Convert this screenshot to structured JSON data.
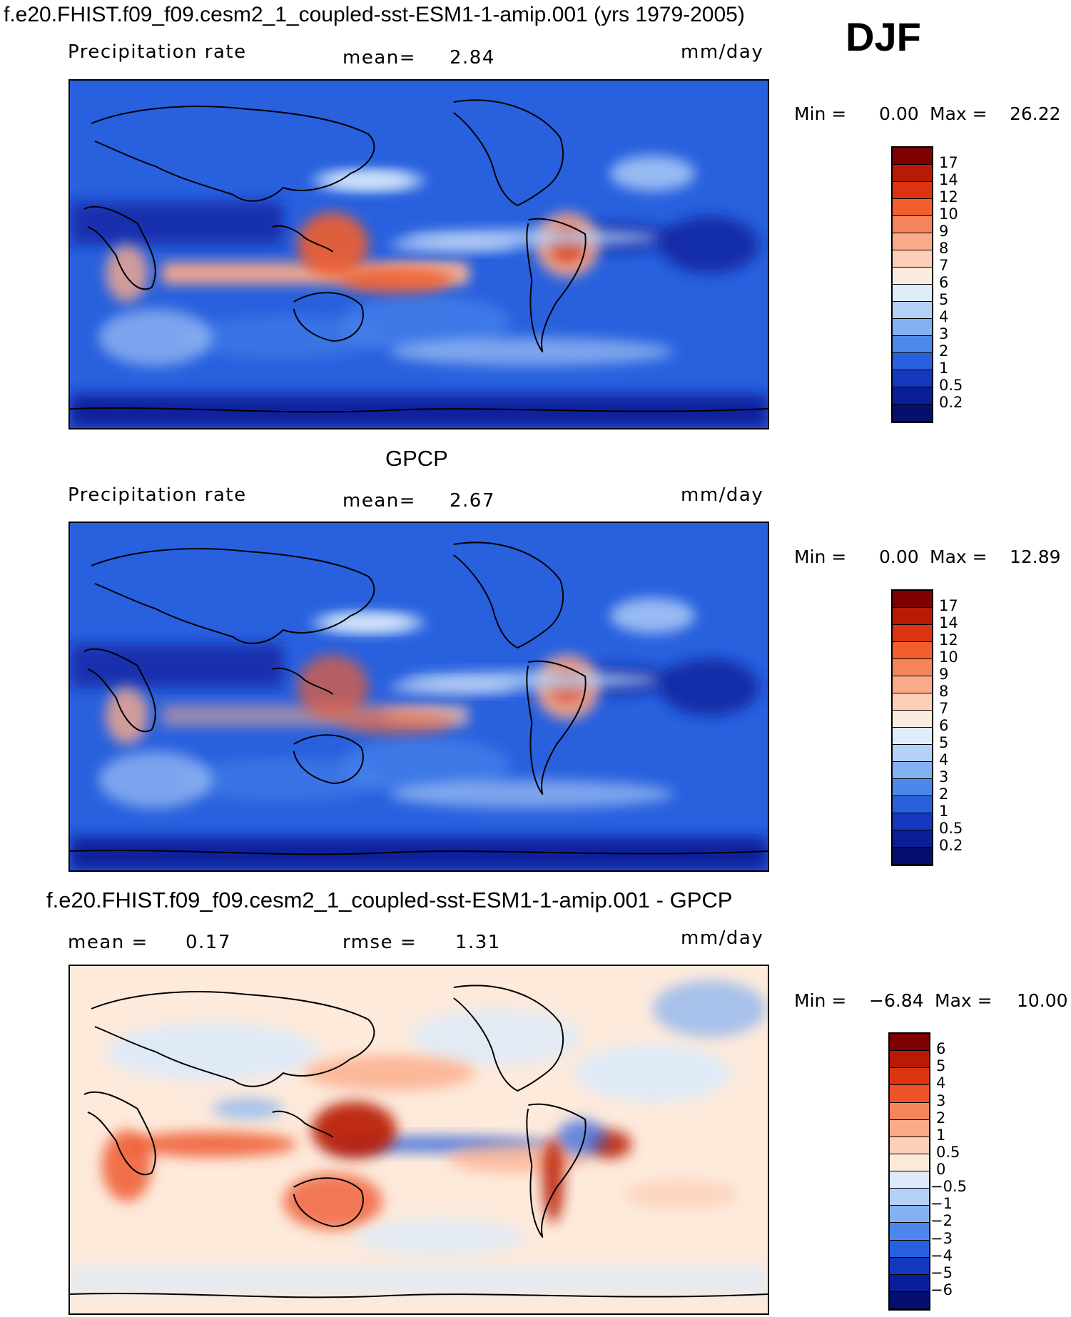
{
  "header": {
    "title": "f.e20.FHIST.f09_f09.cesm2_1_coupled-sst-ESM1-1-amip.001 (yrs 1979-2005)",
    "season": "DJF"
  },
  "panels": [
    {
      "title": "",
      "variable": "Precipitation rate",
      "stat_label": "mean=",
      "stat_value": "2.84",
      "stat2_label": "",
      "stat2_value": "",
      "units": "mm/day",
      "min_label": "Min =",
      "min_value": "0.00",
      "max_label": "Max =",
      "max_value": "26.22"
    },
    {
      "title": "GPCP",
      "variable": "Precipitation rate",
      "stat_label": "mean=",
      "stat_value": "2.67",
      "stat2_label": "",
      "stat2_value": "",
      "units": "mm/day",
      "min_label": "Min =",
      "min_value": "0.00",
      "max_label": "Max =",
      "max_value": "12.89"
    },
    {
      "title": "f.e20.FHIST.f09_f09.cesm2_1_coupled-sst-ESM1-1-amip.001 - GPCP",
      "variable": "",
      "stat_label": "mean =",
      "stat_value": "0.17",
      "stat2_label": "rmse =",
      "stat2_value": "1.31",
      "units": "mm/day",
      "min_label": "Min =",
      "min_value": "−6.84",
      "max_label": "Max =",
      "max_value": "10.00"
    }
  ],
  "chart_data": [
    {
      "type": "heatmap",
      "title": "Precipitation rate",
      "units": "mm/day",
      "mean": 2.84,
      "min": 0.0,
      "max": 26.22,
      "colorbar_levels": [
        "17",
        "14",
        "12",
        "10",
        "9",
        "8",
        "7",
        "6",
        "5",
        "4",
        "3",
        "2",
        "1",
        "0.5",
        "0.2"
      ],
      "colorbar_colors": [
        "#7f0000",
        "#b81a05",
        "#dc3410",
        "#f25e2c",
        "#f7855c",
        "#fbab8a",
        "#fccfb6",
        "#fbece0",
        "#dfedfb",
        "#b4d1f7",
        "#83b1f2",
        "#4c88ec",
        "#2860de",
        "#1337bd",
        "#0a1e9a",
        "#040f6e"
      ]
    },
    {
      "type": "heatmap",
      "title": "Precipitation rate",
      "units": "mm/day",
      "mean": 2.67,
      "min": 0.0,
      "max": 12.89,
      "colorbar_levels": [
        "17",
        "14",
        "12",
        "10",
        "9",
        "8",
        "7",
        "6",
        "5",
        "4",
        "3",
        "2",
        "1",
        "0.5",
        "0.2"
      ],
      "colorbar_colors": [
        "#7f0000",
        "#b81a05",
        "#dc3410",
        "#f25e2c",
        "#f7855c",
        "#fbab8a",
        "#fccfb6",
        "#fbece0",
        "#dfedfb",
        "#b4d1f7",
        "#83b1f2",
        "#4c88ec",
        "#2860de",
        "#1337bd",
        "#0a1e9a",
        "#040f6e"
      ]
    },
    {
      "type": "heatmap",
      "title": "f.e20.FHIST.f09_f09.cesm2_1_coupled-sst-ESM1-1-amip.001 - GPCP",
      "units": "mm/day",
      "mean": 0.17,
      "rmse": 1.31,
      "min": -6.84,
      "max": 10.0,
      "colorbar_levels": [
        "6",
        "5",
        "4",
        "3",
        "2",
        "1",
        "0.5",
        "0",
        "−0.5",
        "−1",
        "−2",
        "−3",
        "−4",
        "−5",
        "−6"
      ],
      "colorbar_colors": [
        "#7f0000",
        "#b81a05",
        "#dc3410",
        "#ee5326",
        "#f7855c",
        "#fbab8a",
        "#fccfb6",
        "#fdeadb",
        "#dceafa",
        "#b4d1f7",
        "#83b1f2",
        "#4c88ec",
        "#2860de",
        "#1337bd",
        "#0a1e9a",
        "#040f6e"
      ]
    }
  ]
}
